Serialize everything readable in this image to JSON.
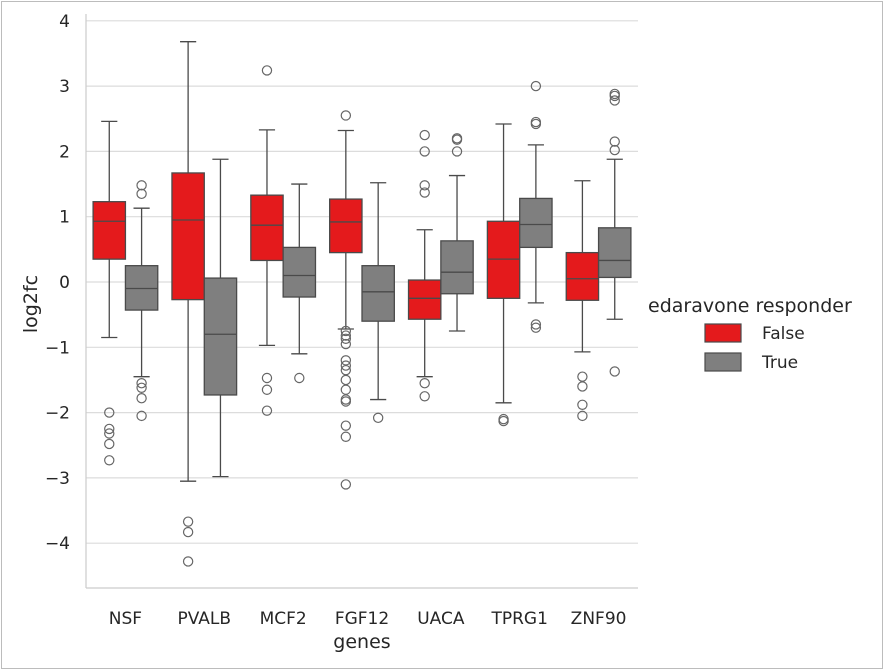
{
  "chart_data": {
    "type": "box",
    "xlabel": "genes",
    "ylabel": "log2fc",
    "ylim": [
      -4.6,
      4.1
    ],
    "yticks": [
      4,
      3,
      2,
      1,
      0,
      -1,
      -2,
      -3,
      -4
    ],
    "ytick_labels": [
      "4",
      "3",
      "2",
      "1",
      "0",
      "−1",
      "−2",
      "−3",
      "−4"
    ],
    "grid": "horizontal",
    "legend": {
      "title": "edaravone responder",
      "placement": "right",
      "entries": [
        {
          "label": "False",
          "color": "#e41a1c"
        },
        {
          "label": "True",
          "color": "#7f7f7f"
        }
      ]
    },
    "categories": [
      "NSF",
      "PVALB",
      "MCF2",
      "FGF12",
      "UACA",
      "TPRG1",
      "ZNF90"
    ],
    "series": [
      {
        "name": "False",
        "color": "#e41a1c",
        "boxes": [
          {
            "q1": 0.35,
            "median": 0.93,
            "q3": 1.23,
            "whislo": -0.85,
            "whishi": 2.46,
            "fliers": [
              -2.0,
              -2.25,
              -2.32,
              -2.48,
              -2.73
            ]
          },
          {
            "q1": -0.27,
            "median": 0.95,
            "q3": 1.67,
            "whislo": -3.05,
            "whishi": 3.68,
            "fliers": [
              -3.67,
              -3.83,
              -4.28
            ]
          },
          {
            "q1": 0.33,
            "median": 0.87,
            "q3": 1.33,
            "whislo": -0.97,
            "whishi": 2.33,
            "fliers": [
              3.24,
              -1.47,
              -1.65,
              -1.97
            ]
          },
          {
            "q1": 0.45,
            "median": 0.92,
            "q3": 1.27,
            "whislo": -0.72,
            "whishi": 2.32,
            "fliers": [
              2.55,
              -0.75,
              -0.82,
              -0.87,
              -0.95,
              -1.2,
              -1.28,
              -1.35,
              -1.5,
              -1.65,
              -1.8,
              -1.83,
              -2.2,
              -2.37,
              -3.1
            ]
          },
          {
            "q1": -0.57,
            "median": -0.25,
            "q3": 0.03,
            "whislo": -1.45,
            "whishi": 0.8,
            "fliers": [
              2.25,
              2.0,
              1.48,
              1.37,
              -1.55,
              -1.75
            ]
          },
          {
            "q1": -0.25,
            "median": 0.35,
            "q3": 0.93,
            "whislo": -1.85,
            "whishi": 2.42,
            "fliers": [
              -2.1,
              -2.13
            ]
          },
          {
            "q1": -0.28,
            "median": 0.05,
            "q3": 0.45,
            "whislo": -1.07,
            "whishi": 1.55,
            "fliers": [
              -1.45,
              -1.6,
              -1.88,
              -2.05
            ]
          }
        ]
      },
      {
        "name": "True",
        "color": "#7f7f7f",
        "boxes": [
          {
            "q1": -0.43,
            "median": -0.1,
            "q3": 0.25,
            "whislo": -1.45,
            "whishi": 1.13,
            "fliers": [
              1.48,
              1.35,
              -1.55,
              -1.62,
              -1.78,
              -2.05
            ]
          },
          {
            "q1": -1.73,
            "median": -0.8,
            "q3": 0.06,
            "whislo": -2.98,
            "whishi": 1.88,
            "fliers": []
          },
          {
            "q1": -0.23,
            "median": 0.1,
            "q3": 0.53,
            "whislo": -1.1,
            "whishi": 1.5,
            "fliers": [
              -1.47
            ]
          },
          {
            "q1": -0.6,
            "median": -0.15,
            "q3": 0.25,
            "whislo": -1.8,
            "whishi": 1.52,
            "fliers": [
              -2.08
            ]
          },
          {
            "q1": -0.18,
            "median": 0.15,
            "q3": 0.63,
            "whislo": -0.75,
            "whishi": 1.63,
            "fliers": [
              2.18,
              2.2,
              2.0
            ]
          },
          {
            "q1": 0.53,
            "median": 0.88,
            "q3": 1.28,
            "whislo": -0.32,
            "whishi": 2.1,
            "fliers": [
              3.0,
              2.45,
              2.42,
              -0.65,
              -0.7
            ]
          },
          {
            "q1": 0.07,
            "median": 0.33,
            "q3": 0.83,
            "whislo": -0.57,
            "whishi": 1.88,
            "fliers": [
              2.88,
              2.85,
              2.78,
              2.15,
              2.02,
              -1.37
            ]
          }
        ]
      }
    ]
  }
}
